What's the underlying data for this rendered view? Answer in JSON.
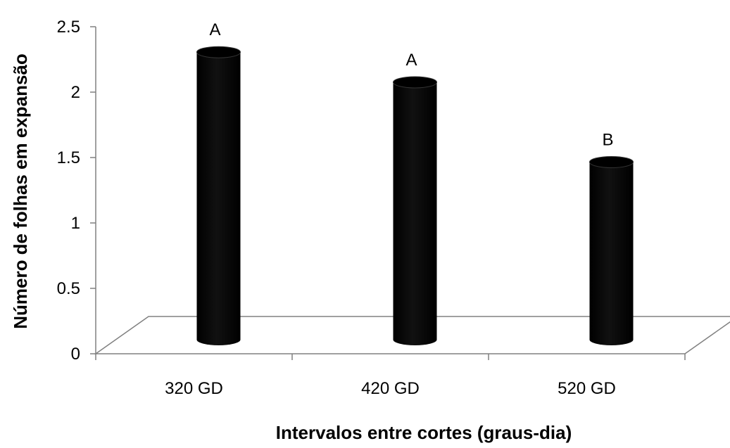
{
  "chart_data": {
    "type": "bar",
    "style": "3d-cylinder",
    "categories": [
      "320 GD",
      "420 GD",
      "520 GD"
    ],
    "values": [
      2.3,
      2.07,
      1.46
    ],
    "annotations": [
      "A",
      "A",
      "B"
    ],
    "xlabel": "Intervalos entre cortes (graus-dia)",
    "ylabel": "Número de folhas em expansão",
    "ylim": [
      0,
      2.5
    ],
    "yticks": [
      "0",
      "0.5",
      "1",
      "1.5",
      "2",
      "2.5"
    ],
    "ytick_values": [
      0,
      0.5,
      1,
      1.5,
      2,
      2.5
    ],
    "grid": false,
    "legend": "none",
    "bar_color": "#000000",
    "axis_color": "#808080"
  }
}
